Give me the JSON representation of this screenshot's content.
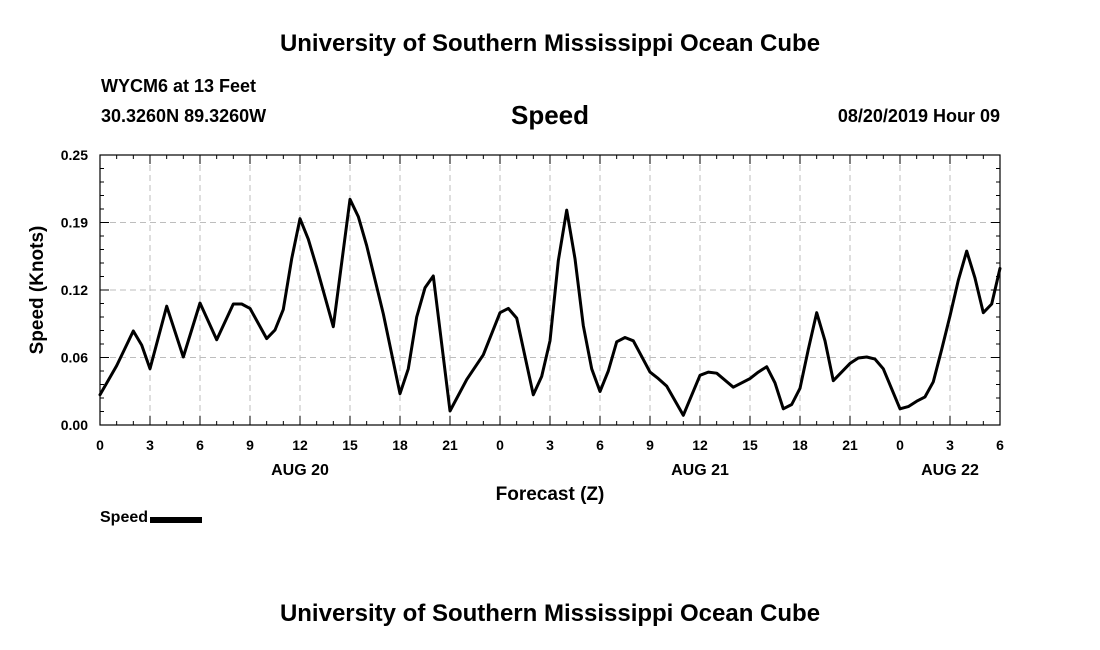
{
  "header": {
    "title": "University of Southern Mississippi Ocean Cube",
    "station": "WYCM6 at 13 Feet",
    "location": "30.3260N 89.3260W",
    "variable": "Speed",
    "datetime": "08/20/2019 Hour 09"
  },
  "footer": {
    "title": "University of Southern Mississippi Ocean Cube"
  },
  "legend": {
    "label": "Speed",
    "color": "#000000"
  },
  "chart_data": {
    "type": "line",
    "title": "Speed",
    "xlabel": "Forecast (Z)",
    "ylabel": "Speed (Knots)",
    "xlim": [
      0,
      54
    ],
    "ylim": [
      0,
      0.25
    ],
    "grid": true,
    "legend_placement": "bottom-left",
    "x_ticks": [
      0,
      3,
      6,
      9,
      12,
      15,
      18,
      21,
      24,
      27,
      30,
      33,
      36,
      39,
      42,
      45,
      48,
      51,
      54
    ],
    "x_tick_labels": [
      "0",
      "3",
      "6",
      "9",
      "12",
      "15",
      "18",
      "21",
      "0",
      "3",
      "6",
      "9",
      "12",
      "15",
      "18",
      "21",
      "0",
      "3",
      "6"
    ],
    "y_ticks": [
      0,
      0.0625,
      0.125,
      0.1875,
      0.25
    ],
    "y_tick_labels": [
      "0.00",
      "0.06",
      "0.12",
      "0.19",
      "0.25"
    ],
    "date_labels": [
      {
        "x": 12,
        "text": "AUG 20"
      },
      {
        "x": 36,
        "text": "AUG 21"
      },
      {
        "x": 51,
        "text": "AUG 22"
      }
    ],
    "series": [
      {
        "name": "Speed",
        "color": "#000000",
        "x": [
          0,
          1,
          2,
          2.5,
          3,
          4,
          5,
          6,
          7,
          8,
          8.5,
          9,
          10,
          10.5,
          11,
          11.5,
          12,
          12.5,
          13,
          14,
          15,
          15.5,
          16,
          17,
          18,
          18.5,
          19,
          19.5,
          20,
          21,
          22,
          23,
          24,
          24.5,
          25,
          26,
          26.5,
          27,
          27.5,
          28,
          28.5,
          29,
          29.5,
          30,
          30.5,
          31,
          31.5,
          32,
          33,
          33.5,
          34,
          35,
          36,
          36.5,
          37,
          38,
          39,
          39.5,
          40,
          40.5,
          41,
          41.5,
          42,
          42.5,
          43,
          43.5,
          44,
          45,
          45.5,
          46,
          46.5,
          47,
          48,
          48.5,
          49,
          49.5,
          50,
          50.5,
          51,
          51.5,
          52,
          52.5,
          53,
          53.5,
          54
        ],
        "values": [
          0.028,
          0.055,
          0.087,
          0.074,
          0.052,
          0.11,
          0.063,
          0.113,
          0.079,
          0.112,
          0.112,
          0.108,
          0.08,
          0.088,
          0.107,
          0.154,
          0.191,
          0.172,
          0.146,
          0.091,
          0.209,
          0.193,
          0.166,
          0.103,
          0.029,
          0.052,
          0.1,
          0.127,
          0.138,
          0.013,
          0.042,
          0.065,
          0.104,
          0.108,
          0.099,
          0.028,
          0.045,
          0.078,
          0.152,
          0.199,
          0.154,
          0.092,
          0.052,
          0.031,
          0.05,
          0.077,
          0.081,
          0.078,
          0.049,
          0.043,
          0.036,
          0.009,
          0.046,
          0.049,
          0.048,
          0.035,
          0.043,
          0.049,
          0.054,
          0.039,
          0.015,
          0.019,
          0.034,
          0.07,
          0.104,
          0.078,
          0.041,
          0.057,
          0.062,
          0.063,
          0.061,
          0.052,
          0.015,
          0.017,
          0.022,
          0.026,
          0.04,
          0.07,
          0.101,
          0.134,
          0.161,
          0.136,
          0.104,
          0.112,
          0.145
        ]
      }
    ]
  }
}
